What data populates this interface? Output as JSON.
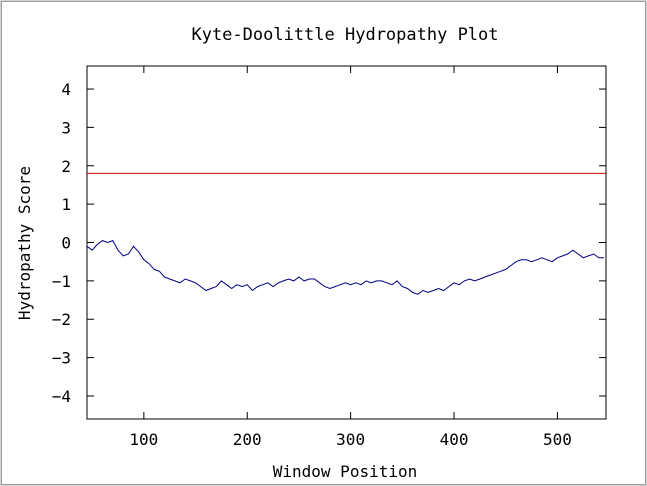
{
  "chart_data": {
    "type": "line",
    "title": "Kyte-Doolittle Hydropathy Plot",
    "xlabel": "Window Position",
    "ylabel": "Hydropathy Score",
    "xlim": [
      45,
      547
    ],
    "ylim": [
      -4.6,
      4.6
    ],
    "xticks": [
      100,
      200,
      300,
      400,
      500
    ],
    "yticks": [
      4,
      3,
      2,
      1,
      0,
      -1,
      -2,
      -3,
      -4
    ],
    "grid": false,
    "threshold": {
      "value": 1.8,
      "color": "#dd0000"
    },
    "series": [
      {
        "color": "#000080",
        "x": [
          45,
          50,
          55,
          60,
          65,
          70,
          75,
          80,
          85,
          90,
          95,
          100,
          105,
          110,
          115,
          120,
          125,
          130,
          135,
          140,
          145,
          150,
          155,
          160,
          165,
          170,
          175,
          180,
          185,
          190,
          195,
          200,
          205,
          210,
          215,
          220,
          225,
          230,
          235,
          240,
          245,
          250,
          255,
          260,
          265,
          270,
          275,
          280,
          285,
          290,
          295,
          300,
          305,
          310,
          315,
          320,
          325,
          330,
          335,
          340,
          345,
          350,
          355,
          360,
          365,
          370,
          375,
          380,
          385,
          390,
          395,
          400,
          405,
          410,
          415,
          420,
          425,
          430,
          435,
          440,
          445,
          450,
          455,
          460,
          465,
          470,
          475,
          480,
          485,
          490,
          495,
          500,
          505,
          510,
          515,
          520,
          525,
          530,
          535,
          540,
          545
        ],
        "y": [
          -0.1,
          -0.2,
          -0.05,
          0.05,
          0.0,
          0.05,
          -0.2,
          -0.35,
          -0.3,
          -0.1,
          -0.25,
          -0.45,
          -0.55,
          -0.7,
          -0.75,
          -0.9,
          -0.95,
          -1.0,
          -1.05,
          -0.95,
          -1.0,
          -1.05,
          -1.15,
          -1.25,
          -1.2,
          -1.15,
          -1.0,
          -1.1,
          -1.2,
          -1.1,
          -1.15,
          -1.1,
          -1.25,
          -1.15,
          -1.1,
          -1.05,
          -1.15,
          -1.05,
          -1.0,
          -0.95,
          -1.0,
          -0.9,
          -1.0,
          -0.95,
          -0.95,
          -1.05,
          -1.15,
          -1.2,
          -1.15,
          -1.1,
          -1.05,
          -1.1,
          -1.05,
          -1.1,
          -1.0,
          -1.05,
          -1.0,
          -1.0,
          -1.05,
          -1.1,
          -1.0,
          -1.15,
          -1.2,
          -1.3,
          -1.35,
          -1.25,
          -1.3,
          -1.25,
          -1.2,
          -1.25,
          -1.15,
          -1.05,
          -1.1,
          -1.0,
          -0.95,
          -1.0,
          -0.95,
          -0.9,
          -0.85,
          -0.8,
          -0.75,
          -0.7,
          -0.6,
          -0.5,
          -0.45,
          -0.45,
          -0.5,
          -0.45,
          -0.4,
          -0.45,
          -0.5,
          -0.4,
          -0.35,
          -0.3,
          -0.2,
          -0.3,
          -0.4,
          -0.35,
          -0.3,
          -0.4,
          -0.4
        ]
      }
    ]
  }
}
